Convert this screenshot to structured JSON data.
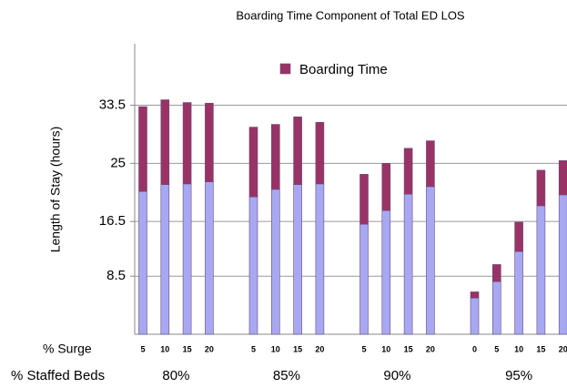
{
  "chart_data": {
    "type": "stacked_bar",
    "title": "Boarding Time Component of Total ED LOS",
    "y_label": "Length of Stay (hours)",
    "x_labels": [
      "% Surge",
      "% Staffed Beds"
    ],
    "groups": [
      {
        "name": "80%",
        "categories": [
          "5",
          "10",
          "15",
          "20"
        ]
      },
      {
        "name": "85%",
        "categories": [
          "5",
          "10",
          "15",
          "20"
        ]
      },
      {
        "name": "90%",
        "categories": [
          "5",
          "10",
          "15",
          "20"
        ]
      },
      {
        "name": "95%",
        "categories": [
          "0",
          "5",
          "10",
          "15",
          "20"
        ]
      }
    ],
    "series": [
      {
        "color": "#a8a8f2",
        "values": [
          20.9,
          21.9,
          22.0,
          22.3,
          20.1,
          21.2,
          21.9,
          22.0,
          16.1,
          18.1,
          20.5,
          21.6,
          5.3,
          7.7,
          12.1,
          18.8,
          20.4
        ]
      },
      {
        "name": "Boarding Time",
        "color": "#993366",
        "values": [
          12.4,
          12.4,
          11.9,
          11.5,
          10.2,
          9.5,
          9.9,
          9.0,
          7.3,
          6.9,
          6.7,
          6.7,
          0.9,
          2.5,
          4.3,
          5.2,
          5.0
        ]
      }
    ],
    "ylim": [
      0,
      42.5
    ],
    "yticks": [
      8.5,
      16.5,
      25,
      33.5
    ],
    "grid": true,
    "legend": "top"
  }
}
